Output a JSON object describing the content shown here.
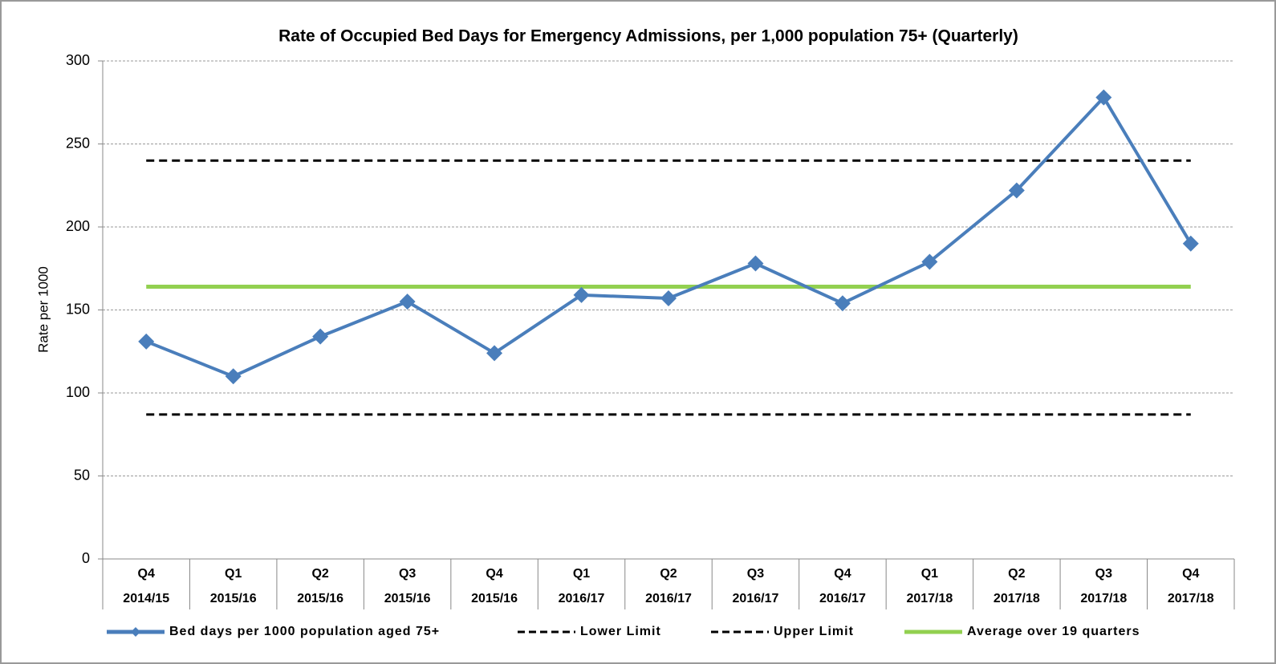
{
  "chart_data": {
    "type": "line",
    "title": "Rate of Occupied Bed Days for Emergency Admissions, per 1,000 population 75+  (Quarterly)",
    "y_label": "Rate per 1000",
    "categories": [
      [
        "Q4",
        "2014/15"
      ],
      [
        "Q1",
        "2015/16"
      ],
      [
        "Q2",
        "2015/16"
      ],
      [
        "Q3",
        "2015/16"
      ],
      [
        "Q4",
        "2015/16"
      ],
      [
        "Q1",
        "2016/17"
      ],
      [
        "Q2",
        "2016/17"
      ],
      [
        "Q3",
        "2016/17"
      ],
      [
        "Q4",
        "2016/17"
      ],
      [
        "Q1",
        "2017/18"
      ],
      [
        "Q2",
        "2017/18"
      ],
      [
        "Q3",
        "2017/18"
      ],
      [
        "Q4",
        "2017/18"
      ]
    ],
    "series": [
      {
        "name": "Bed days per 1000 population aged 75+",
        "color": "#4a7ebb",
        "dash": "solid",
        "marker": "diamond",
        "values": [
          131,
          110,
          134,
          155,
          124,
          159,
          157,
          178,
          154,
          179,
          222,
          278,
          190
        ]
      },
      {
        "name": "Lower Limit",
        "color": "#000000",
        "dash": "dashed",
        "marker": "none",
        "values": [
          87,
          87,
          87,
          87,
          87,
          87,
          87,
          87,
          87,
          87,
          87,
          87,
          87
        ]
      },
      {
        "name": "Upper Limit",
        "color": "#000000",
        "dash": "dashed",
        "marker": "none",
        "values": [
          240,
          240,
          240,
          240,
          240,
          240,
          240,
          240,
          240,
          240,
          240,
          240,
          240
        ]
      },
      {
        "name": "Average over 19 quarters",
        "color": "#92d050",
        "dash": "solid",
        "marker": "none",
        "values": [
          164,
          164,
          164,
          164,
          164,
          164,
          164,
          164,
          164,
          164,
          164,
          164,
          164
        ]
      }
    ],
    "ylim": [
      0,
      300
    ],
    "yticks": [
      0,
      50,
      100,
      150,
      200,
      250,
      300
    ],
    "grid": true,
    "legend": "bottom"
  }
}
